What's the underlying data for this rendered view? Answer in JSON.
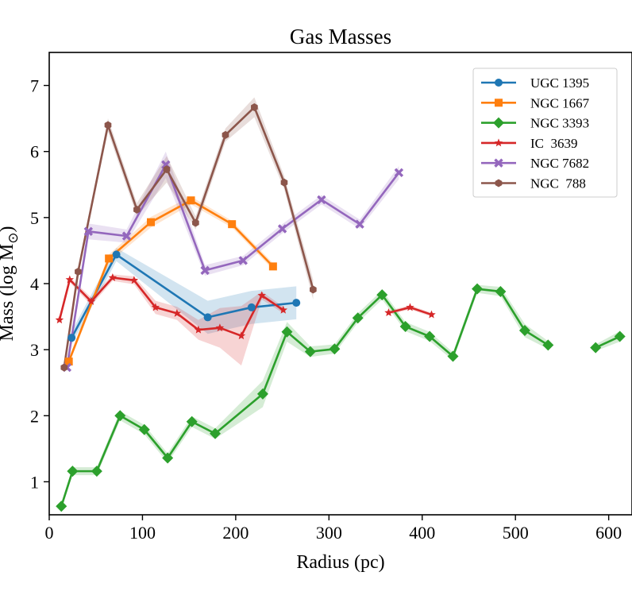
{
  "chart_data": {
    "type": "line",
    "title": "Gas Masses",
    "xlabel": "Radius (pc)",
    "ylabel_main": "Mass (log M",
    "ylabel_sub": "⊙",
    "ylabel_end": ")",
    "xlim": [
      0,
      625
    ],
    "ylim": [
      0.5,
      7.5
    ],
    "xticks": [
      0,
      100,
      200,
      300,
      400,
      500,
      600
    ],
    "yticks": [
      1,
      2,
      3,
      4,
      5,
      6,
      7
    ],
    "legend_position": "top-right",
    "series": [
      {
        "name": "UGC 1395",
        "color": "#1f77b4",
        "marker": "circle",
        "x": [
          24,
          72,
          170,
          217,
          265
        ],
        "y": [
          3.18,
          4.44,
          3.49,
          3.64,
          3.71
        ],
        "err": [
          0.1,
          0.1,
          0.25,
          0.25,
          0.25
        ],
        "segments": [
          [
            0,
            4
          ]
        ]
      },
      {
        "name": "NGC 1667",
        "color": "#ff7f0e",
        "marker": "square",
        "x": [
          21,
          64,
          109,
          152,
          196,
          240
        ],
        "y": [
          2.82,
          4.38,
          4.93,
          5.26,
          4.9,
          4.26
        ],
        "err": [
          0.05,
          0.06,
          0.08,
          0.06,
          0.05,
          0.05
        ],
        "segments": [
          [
            0,
            5
          ]
        ]
      },
      {
        "name": "NGC 3393",
        "color": "#2ca02c",
        "marker": "diamond",
        "x": [
          13,
          25,
          51,
          76,
          102,
          127,
          153,
          178,
          229,
          255,
          280,
          306,
          331,
          357,
          382,
          408,
          433,
          459,
          484,
          510,
          535,
          586,
          612
        ],
        "y": [
          0.63,
          1.16,
          1.16,
          2.0,
          1.79,
          1.36,
          1.91,
          1.73,
          2.33,
          3.27,
          2.97,
          3.01,
          3.48,
          3.83,
          3.35,
          3.2,
          2.9,
          3.92,
          3.88,
          3.29,
          3.07,
          3.03,
          3.2
        ],
        "err": [
          0.05,
          0.06,
          0.06,
          0.07,
          0.07,
          0.07,
          0.08,
          0.08,
          0.2,
          0.15,
          0.08,
          0.07,
          0.07,
          0.07,
          0.07,
          0.07,
          0.06,
          0.06,
          0.07,
          0.1,
          0.06,
          0.05,
          0.08
        ],
        "segments": [
          [
            0,
            20
          ],
          [
            21,
            22
          ]
        ]
      },
      {
        "name": "IC  3639",
        "color": "#d62728",
        "marker": "star",
        "x": [
          11,
          22,
          45,
          68,
          91,
          114,
          137,
          160,
          183,
          206,
          228,
          251,
          364,
          387,
          410
        ],
        "y": [
          3.45,
          4.06,
          3.73,
          4.09,
          4.05,
          3.64,
          3.55,
          3.3,
          3.33,
          3.21,
          3.82,
          3.6,
          3.56,
          3.64,
          3.53
        ],
        "err": [
          0.03,
          0.04,
          0.06,
          0.05,
          0.06,
          0.1,
          0.1,
          0.15,
          0.3,
          0.45,
          0.06,
          0.05,
          0.03,
          0.03,
          0.03
        ],
        "segments": [
          [
            0,
            11
          ],
          [
            12,
            14
          ]
        ]
      },
      {
        "name": "NGC 7682",
        "color": "#9467bd",
        "marker": "x",
        "x": [
          19,
          42,
          83,
          125,
          167,
          208,
          250,
          292,
          333,
          375
        ],
        "y": [
          2.73,
          4.79,
          4.72,
          5.8,
          4.2,
          4.35,
          4.83,
          5.27,
          4.9,
          5.68
        ],
        "err": [
          0.05,
          0.12,
          0.1,
          0.2,
          0.08,
          0.07,
          0.07,
          0.07,
          0.07,
          0.1
        ],
        "segments": [
          [
            0,
            9
          ]
        ]
      },
      {
        "name": "NGC  788",
        "color": "#8c564b",
        "marker": "hexagon",
        "x": [
          16,
          31,
          63,
          94,
          126,
          157,
          189,
          220,
          252,
          283
        ],
        "y": [
          2.73,
          4.18,
          6.4,
          5.12,
          5.73,
          4.92,
          6.25,
          6.67,
          5.53,
          3.91
        ],
        "err": [
          0.05,
          0.05,
          0.1,
          0.1,
          0.2,
          0.1,
          0.1,
          0.15,
          0.1,
          0.15
        ],
        "segments": [
          [
            0,
            9
          ]
        ]
      }
    ]
  }
}
